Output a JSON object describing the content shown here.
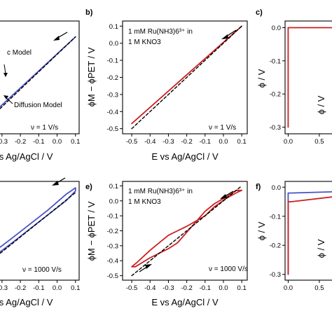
{
  "colors": {
    "blue": "#4a52c7",
    "red": "#cc2020",
    "black": "#000000"
  },
  "chart_data": [
    {
      "id": "a",
      "type": "line",
      "xlabel": "E vs Ag/AgCl / V",
      "ylabel": "",
      "xlim": [
        -0.33,
        0.12
      ],
      "ylim": [
        -0.52,
        0.05
      ],
      "xticks": [
        -0.3,
        -0.2,
        -0.1,
        0.0,
        0.1
      ],
      "xtick_labels": [
        "-0.3",
        "-0.2",
        "-0.1",
        "0.0",
        "0.1"
      ],
      "annotations": [
        {
          "text": "c Model"
        },
        {
          "text": "Diffusion Model"
        },
        {
          "text": "ν = 1 V/s"
        }
      ],
      "series": [
        {
          "name": "c Model",
          "color": "#4a52c7",
          "style": "solid",
          "x": [
            -0.33,
            0.1
          ],
          "y": [
            -0.4,
            -0.03
          ]
        },
        {
          "name": "Diffusion Model",
          "color": "#000000",
          "style": "dashed",
          "x": [
            -0.33,
            0.1
          ],
          "y": [
            -0.41,
            -0.03
          ]
        }
      ]
    },
    {
      "id": "b",
      "letter": "b)",
      "type": "line",
      "xlabel": "E vs Ag/AgCl / V",
      "ylabel": "ϕM − ϕPET / V",
      "xlim": [
        -0.55,
        0.13
      ],
      "ylim": [
        -0.53,
        0.13
      ],
      "xticks": [
        -0.5,
        -0.4,
        -0.3,
        -0.2,
        -0.1,
        0.0,
        0.1
      ],
      "xtick_labels": [
        "-0.5",
        "-0.4",
        "-0.3",
        "-0.2",
        "-0.1",
        "0.0",
        "0.1"
      ],
      "yticks": [
        0.1,
        0.0,
        -0.1,
        -0.2,
        -0.3,
        -0.4,
        -0.5
      ],
      "ytick_labels": [
        "0.1",
        "0.0",
        "-0.1",
        "-0.2",
        "-0.3",
        "-0.4",
        "-0.5"
      ],
      "annotations": [
        {
          "text": "1 mM Ru(NH3)6³⁺ in"
        },
        {
          "text": "1 M KNO3"
        },
        {
          "text": "ν = 1 V/s"
        }
      ],
      "series": [
        {
          "name": "",
          "color": "#cc2020",
          "style": "solid",
          "x": [
            -0.5,
            0.1
          ],
          "y": [
            -0.47,
            0.1
          ]
        },
        {
          "name": "",
          "color": "#000000",
          "style": "dashed",
          "x": [
            -0.5,
            0.1
          ],
          "y": [
            -0.5,
            0.1
          ]
        }
      ]
    },
    {
      "id": "c",
      "letter": "c)",
      "type": "line",
      "xlabel": "",
      "ylabel": "ϕ / V",
      "xlim": [
        -0.05,
        0.85
      ],
      "ylim": [
        -0.32,
        0.02
      ],
      "xticks": [
        0.0,
        0.5
      ],
      "xtick_labels": [
        "0.0",
        "0.5"
      ],
      "yticks": [
        0.0,
        -0.1,
        -0.2,
        -0.3
      ],
      "ytick_labels": [
        "0.0",
        "-0.1",
        "-0.2",
        "-0.3"
      ],
      "partial_label": "ϕ / V",
      "series": [
        {
          "name": "",
          "color": "#cc2020",
          "style": "solid",
          "x": [
            0.0,
            0.0,
            0.02,
            0.85
          ],
          "y": [
            -0.3,
            0.0,
            0.0,
            0.0
          ]
        }
      ]
    },
    {
      "id": "d",
      "type": "line",
      "xlabel": "E vs Ag/AgCl / V",
      "ylabel": "",
      "xlim": [
        -0.33,
        0.12
      ],
      "ylim": [
        -0.52,
        0.1
      ],
      "xticks": [
        -0.3,
        -0.2,
        -0.1,
        0.0,
        0.1
      ],
      "xtick_labels": [
        "-0.3",
        "-0.2",
        "-0.1",
        "0.0",
        "0.1"
      ],
      "annotations": [
        {
          "text": "ν = 1000 V/s"
        }
      ],
      "series": [
        {
          "name": "",
          "color": "#4a52c7",
          "style": "loop",
          "x": [
            0.1,
            0.1,
            0.05,
            -0.05,
            -0.15,
            -0.25,
            -0.33,
            -0.33,
            -0.25,
            -0.15,
            -0.05,
            0.05,
            0.1
          ],
          "y": [
            0.04,
            0.06,
            0.02,
            -0.08,
            -0.17,
            -0.26,
            -0.33,
            -0.36,
            -0.29,
            -0.2,
            -0.11,
            -0.02,
            0.04
          ]
        },
        {
          "name": "",
          "color": "#000000",
          "style": "dashed",
          "x": [
            -0.33,
            0.1
          ],
          "y": [
            -0.37,
            0.03
          ]
        }
      ]
    },
    {
      "id": "e",
      "letter": "e)",
      "type": "line",
      "xlabel": "E vs Ag/AgCl / V",
      "ylabel": "ϕM − ϕPET / V",
      "xlim": [
        -0.55,
        0.13
      ],
      "ylim": [
        -0.53,
        0.13
      ],
      "xticks": [
        -0.5,
        -0.4,
        -0.3,
        -0.2,
        -0.1,
        0.0,
        0.1
      ],
      "xtick_labels": [
        "-0.5",
        "-0.4",
        "-0.3",
        "-0.2",
        "-0.1",
        "0.0",
        "0.1"
      ],
      "yticks": [
        0.1,
        0.0,
        -0.1,
        -0.2,
        -0.3,
        -0.4,
        -0.5
      ],
      "ytick_labels": [
        "0.1",
        "0.0",
        "-0.1",
        "-0.2",
        "-0.3",
        "-0.4",
        "-0.5"
      ],
      "annotations": [
        {
          "text": "1 mM Ru(NH3)6³⁺ in"
        },
        {
          "text": "1 M KNO3"
        },
        {
          "text": "ν = 1000 V/s"
        }
      ],
      "series": [
        {
          "name": "",
          "color": "#cc2020",
          "style": "loop",
          "x": [
            0.1,
            0.08,
            0.02,
            -0.05,
            -0.1,
            -0.2,
            -0.25,
            -0.3,
            -0.4,
            -0.47,
            -0.5,
            -0.48,
            -0.4,
            -0.3,
            -0.25,
            -0.2,
            -0.15,
            -0.1,
            -0.05,
            0.02,
            0.07,
            0.1,
            0.1
          ],
          "y": [
            0.07,
            0.06,
            0.02,
            -0.04,
            -0.1,
            -0.17,
            -0.2,
            -0.23,
            -0.33,
            -0.41,
            -0.44,
            -0.44,
            -0.38,
            -0.32,
            -0.28,
            -0.21,
            -0.14,
            -0.07,
            -0.02,
            0.03,
            0.07,
            0.07,
            0.07
          ]
        },
        {
          "name": "",
          "color": "#000000",
          "style": "dashed",
          "x": [
            -0.5,
            0.1
          ],
          "y": [
            -0.5,
            0.1
          ]
        }
      ]
    },
    {
      "id": "f",
      "letter": "f)",
      "type": "line",
      "xlabel": "",
      "ylabel": "ϕ / V",
      "xlim": [
        -0.05,
        0.85
      ],
      "ylim": [
        -0.32,
        0.02
      ],
      "xticks": [
        0.0,
        0.5
      ],
      "xtick_labels": [
        "0.0",
        "0.5"
      ],
      "yticks": [
        0.0,
        -0.1,
        -0.2,
        -0.3
      ],
      "ytick_labels": [
        "0.0",
        "-0.1",
        "-0.2",
        "-0.3"
      ],
      "partial_label": "ϕ / V",
      "series": [
        {
          "name": "",
          "color": "#4a52c7",
          "style": "solid",
          "x": [
            0.0,
            0.0,
            0.03,
            0.85
          ],
          "y": [
            -0.3,
            -0.02,
            -0.02,
            -0.015
          ]
        },
        {
          "name": "",
          "color": "#cc2020",
          "style": "solid",
          "x": [
            0.0,
            0.0,
            0.05,
            0.85
          ],
          "y": [
            -0.3,
            -0.05,
            -0.05,
            -0.03
          ]
        }
      ]
    }
  ]
}
